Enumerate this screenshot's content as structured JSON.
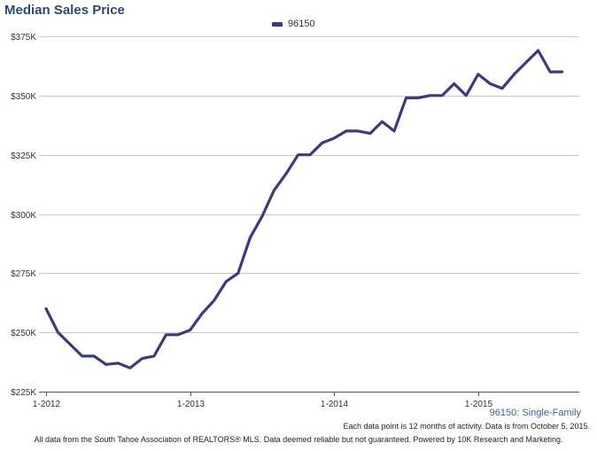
{
  "chart_data": {
    "type": "line",
    "title": "Median Sales Price",
    "ylim": [
      225000,
      375000
    ],
    "y_ticks": [
      {
        "value": 225000,
        "label": "$225K"
      },
      {
        "value": 250000,
        "label": "$250K"
      },
      {
        "value": 275000,
        "label": "$275K"
      },
      {
        "value": 300000,
        "label": "$300K"
      },
      {
        "value": 325000,
        "label": "$325K"
      },
      {
        "value": 350000,
        "label": "$350K"
      },
      {
        "value": 375000,
        "label": "$375K"
      }
    ],
    "x_ticks": [
      {
        "index": 0,
        "label": "1-2012"
      },
      {
        "index": 12,
        "label": "1-2013"
      },
      {
        "index": 24,
        "label": "1-2014"
      },
      {
        "index": 36,
        "label": "1-2015"
      }
    ],
    "x": [
      "2012-01",
      "2012-02",
      "2012-03",
      "2012-04",
      "2012-05",
      "2012-06",
      "2012-07",
      "2012-08",
      "2012-09",
      "2012-10",
      "2012-11",
      "2012-12",
      "2013-01",
      "2013-02",
      "2013-03",
      "2013-04",
      "2013-05",
      "2013-06",
      "2013-07",
      "2013-08",
      "2013-09",
      "2013-10",
      "2013-11",
      "2013-12",
      "2014-01",
      "2014-02",
      "2014-03",
      "2014-04",
      "2014-05",
      "2014-06",
      "2014-07",
      "2014-08",
      "2014-09",
      "2014-10",
      "2014-11",
      "2014-12",
      "2015-01",
      "2015-02",
      "2015-03",
      "2015-04",
      "2015-05",
      "2015-06",
      "2015-07",
      "2015-08"
    ],
    "series": [
      {
        "name": "96150",
        "color": "#3b3b7e",
        "values": [
          260000,
          250000,
          245000,
          240000,
          240000,
          236500,
          237000,
          235000,
          239000,
          240000,
          249000,
          249000,
          251000,
          258000,
          263500,
          271500,
          275000,
          290000,
          299000,
          310000,
          317000,
          325000,
          325000,
          330000,
          332000,
          335000,
          335000,
          334000,
          339000,
          335000,
          349000,
          349000,
          350000,
          350000,
          355000,
          350000,
          359000,
          355000,
          353000,
          359000,
          364000,
          369000,
          360000,
          360000
        ]
      }
    ],
    "grid": true,
    "legend": "top-center"
  },
  "subtitle": "96150: Single-Family",
  "note": "Each data point is 12 months of activity. Data is from October 5, 2015.",
  "footer": "All data from the South Tahoe Association of REALTORS® MLS. Data deemed reliable but not guaranteed. Powered by 10K Research and Marketing."
}
